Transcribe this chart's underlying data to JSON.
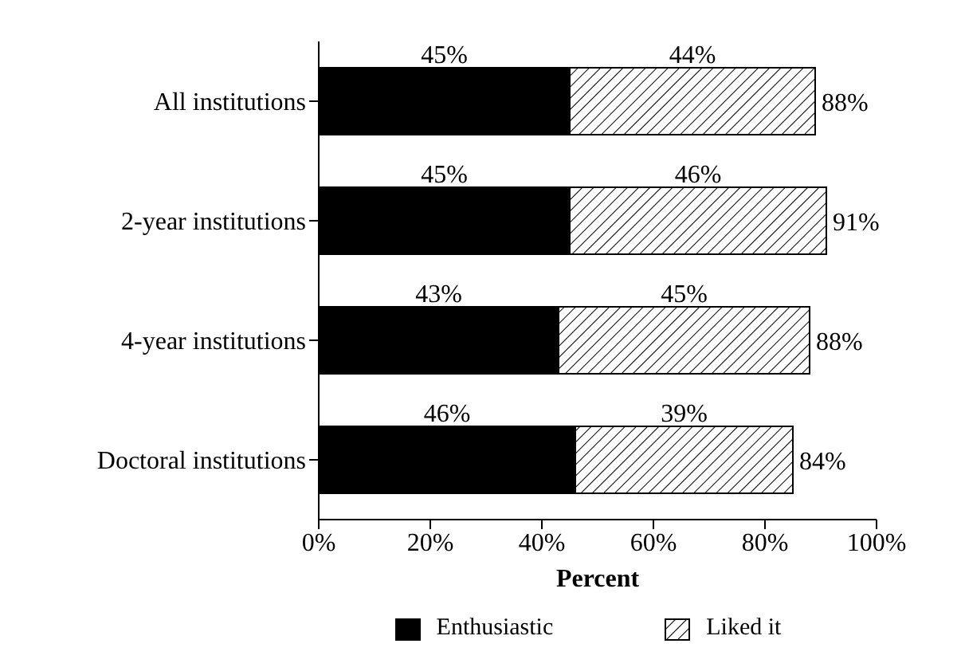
{
  "chart_data": {
    "type": "bar",
    "orientation": "horizontal",
    "stacked": true,
    "xlabel": "Percent",
    "categories": [
      "All institutions",
      "2-year institutions",
      "4-year institutions",
      "Doctoral institutions"
    ],
    "series": [
      {
        "name": "Enthusiastic",
        "color": "#000000",
        "values": [
          45,
          45,
          43,
          46
        ],
        "value_labels": [
          "45%",
          "45%",
          "43%",
          "46%"
        ]
      },
      {
        "name": "Liked it",
        "color": "#000000",
        "values": [
          44,
          46,
          45,
          39
        ],
        "value_labels": [
          "44%",
          "46%",
          "45%",
          "39%"
        ]
      }
    ],
    "totals": [
      "88%",
      "91%",
      "88%",
      "84%"
    ],
    "xlim": [
      0,
      100
    ],
    "xticks": [
      {
        "value": 0,
        "label": "0%"
      },
      {
        "value": 20,
        "label": "20%"
      },
      {
        "value": 40,
        "label": "40%"
      },
      {
        "value": 60,
        "label": "60%"
      },
      {
        "value": 80,
        "label": "80%"
      },
      {
        "value": 100,
        "label": "100%"
      }
    ],
    "grid": false,
    "legend": "bottom"
  }
}
